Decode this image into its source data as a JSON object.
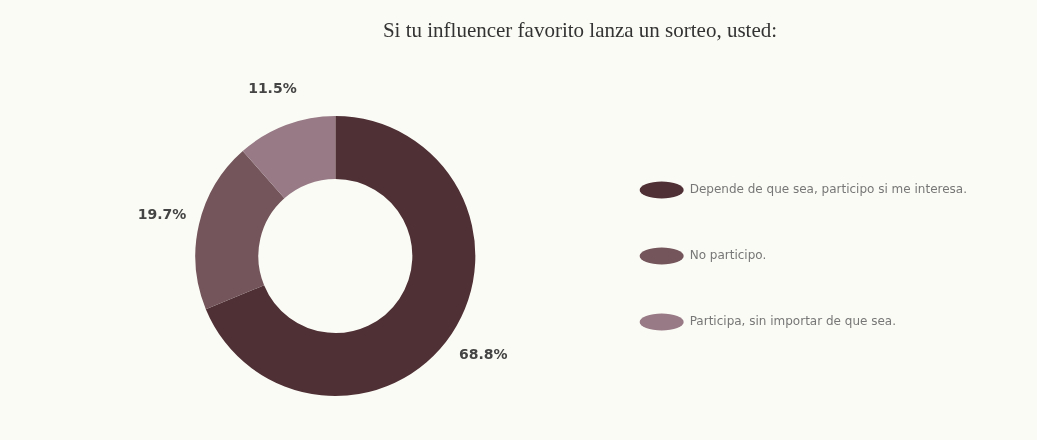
{
  "chart_data": {
    "type": "donut",
    "title": "Si tu influencer favorito lanza un sorteo, usted:",
    "categories": [
      "Depende de que sea, participo si me interesa.",
      "No participo.",
      "Participa, sin importar de que sea."
    ],
    "values": [
      68.8,
      19.7,
      11.5
    ],
    "colors": [
      "#4f3034",
      "#73555b",
      "#977a86"
    ],
    "value_labels": [
      "68.8%",
      "19.7%",
      "11.5%"
    ],
    "legend": "right"
  }
}
